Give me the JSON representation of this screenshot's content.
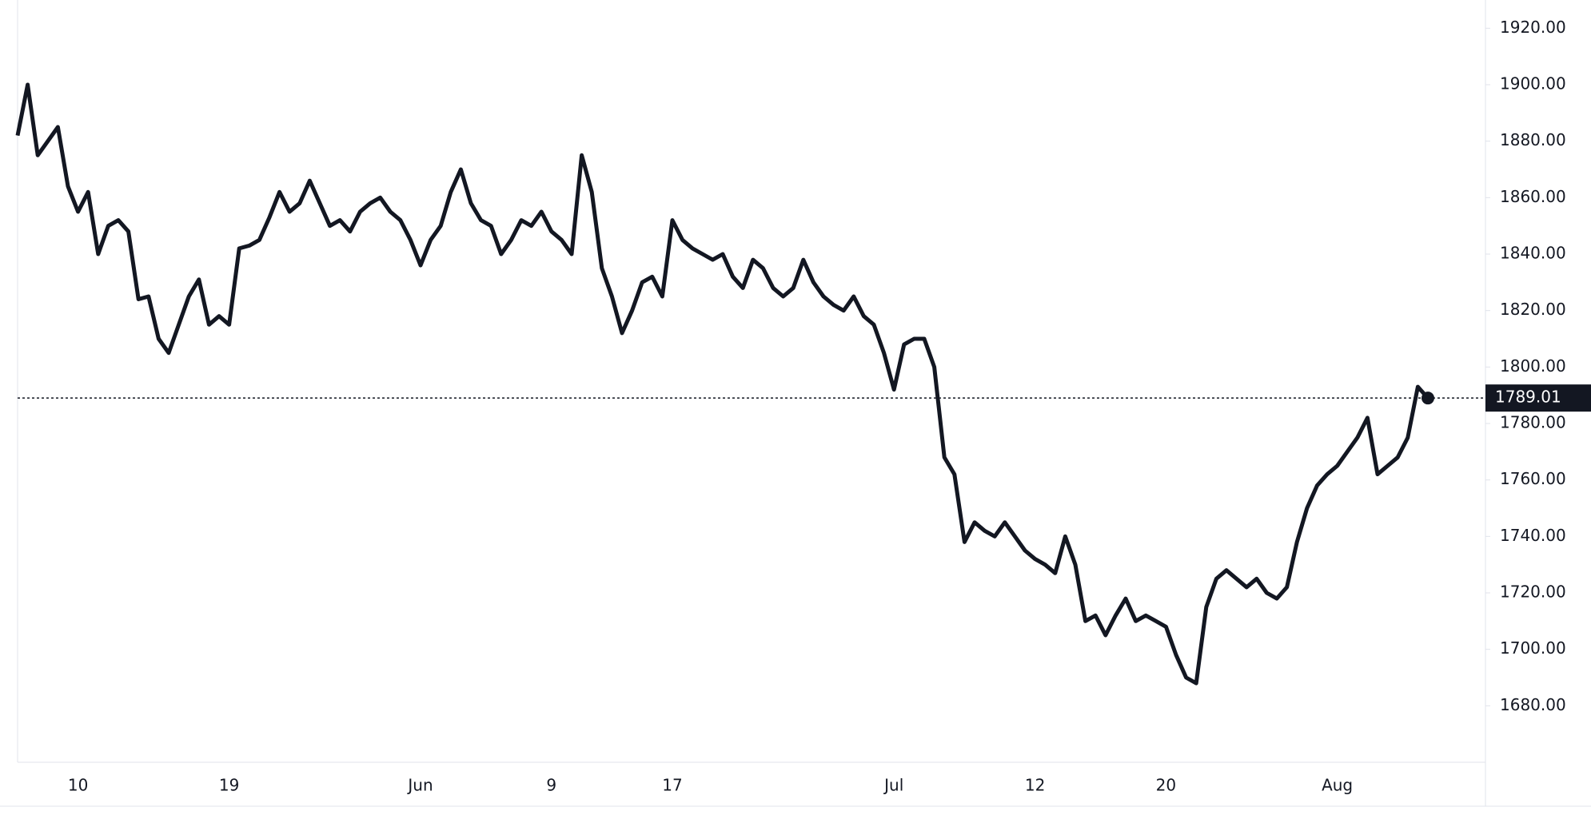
{
  "chart_data": {
    "type": "line",
    "color": "#131722",
    "categories": [
      null,
      null,
      null,
      null,
      null,
      null,
      "10",
      null,
      null,
      null,
      null,
      null,
      null,
      null,
      null,
      null,
      null,
      null,
      null,
      null,
      null,
      "19",
      null,
      null,
      null,
      null,
      null,
      null,
      null,
      null,
      null,
      null,
      null,
      null,
      null,
      null,
      null,
      null,
      null,
      null,
      "Jun",
      null,
      null,
      null,
      null,
      null,
      null,
      null,
      null,
      null,
      null,
      null,
      null,
      "9",
      null,
      null,
      null,
      null,
      null,
      null,
      null,
      null,
      null,
      null,
      null,
      "17",
      null,
      null,
      null,
      null,
      null,
      null,
      null,
      null,
      null,
      null,
      null,
      null,
      null,
      null,
      null,
      null,
      null,
      null,
      null,
      null,
      null,
      "Jul",
      null,
      null,
      null,
      null,
      null,
      null,
      null,
      null,
      null,
      null,
      null,
      null,
      null,
      "12",
      null,
      null,
      null,
      null,
      null,
      null,
      null,
      null,
      null,
      null,
      null,
      null,
      "20",
      null,
      null,
      null,
      null,
      null,
      null,
      null,
      null,
      null,
      null,
      null,
      null,
      null,
      null,
      null,
      null,
      "Aug",
      null,
      null,
      null,
      null,
      null,
      null,
      null,
      null,
      null
    ],
    "values": [
      1882,
      1900,
      1875,
      1880,
      1885,
      1864,
      1855,
      1862,
      1840,
      1850,
      1852,
      1848,
      1824,
      1825,
      1810,
      1805,
      1815,
      1825,
      1831,
      1815,
      1818,
      1815,
      1842,
      1843,
      1845,
      1853,
      1862,
      1855,
      1858,
      1866,
      1858,
      1850,
      1852,
      1848,
      1855,
      1858,
      1860,
      1855,
      1852,
      1845,
      1836,
      1845,
      1850,
      1862,
      1870,
      1858,
      1852,
      1850,
      1840,
      1845,
      1852,
      1850,
      1855,
      1848,
      1845,
      1840,
      1875,
      1862,
      1835,
      1825,
      1812,
      1820,
      1830,
      1832,
      1825,
      1852,
      1845,
      1842,
      1840,
      1838,
      1840,
      1832,
      1828,
      1838,
      1835,
      1828,
      1825,
      1828,
      1838,
      1830,
      1825,
      1822,
      1820,
      1825,
      1818,
      1815,
      1805,
      1792,
      1808,
      1810,
      1810,
      1800,
      1768,
      1762,
      1738,
      1745,
      1742,
      1740,
      1745,
      1740,
      1735,
      1732,
      1730,
      1727,
      1740,
      1730,
      1710,
      1712,
      1705,
      1712,
      1718,
      1710,
      1712,
      1710,
      1708,
      1698,
      1690,
      1688,
      1715,
      1725,
      1728,
      1725,
      1722,
      1725,
      1720,
      1718,
      1722,
      1738,
      1750,
      1758,
      1762,
      1765,
      1770,
      1775,
      1782,
      1762,
      1765,
      1768,
      1775,
      1793,
      1789.01
    ],
    "current_value": 1789.01,
    "ylim": [
      1660,
      1930
    ],
    "yticks": [
      {
        "value": 1680,
        "label": "1680.00"
      },
      {
        "value": 1700,
        "label": "1700.00"
      },
      {
        "value": 1720,
        "label": "1720.00"
      },
      {
        "value": 1740,
        "label": "1740.00"
      },
      {
        "value": 1760,
        "label": "1760.00"
      },
      {
        "value": 1780,
        "label": "1780.00"
      },
      {
        "value": 1800,
        "label": "1800.00"
      },
      {
        "value": 1820,
        "label": "1820.00"
      },
      {
        "value": 1840,
        "label": "1840.00"
      },
      {
        "value": 1860,
        "label": "1860.00"
      },
      {
        "value": 1880,
        "label": "1880.00"
      },
      {
        "value": 1900,
        "label": "1900.00"
      },
      {
        "value": 1920,
        "label": "1920.00"
      }
    ]
  }
}
